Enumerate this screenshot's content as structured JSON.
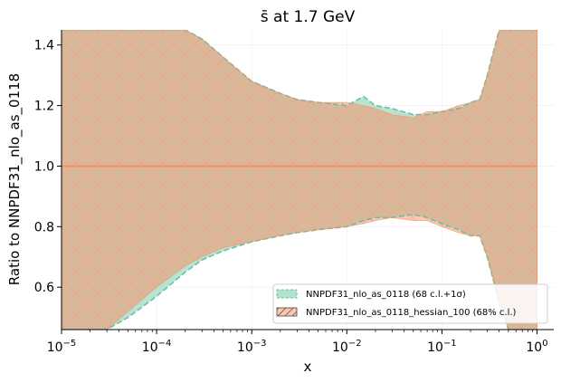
{
  "chart_data": {
    "type": "area",
    "title": "s̄ at 1.7 GeV",
    "xlabel": "x",
    "ylabel": "Ratio to NNPDF31_nlo_as_0118",
    "xscale": "log",
    "xlim": [
      1e-05,
      1.5
    ],
    "ylim": [
      0.46,
      1.45
    ],
    "grid": true,
    "legend_position": "lower-right",
    "x_tick_labels": [
      {
        "value": 1e-05,
        "base": "10",
        "exp": "−5"
      },
      {
        "value": 0.0001,
        "base": "10",
        "exp": "−4"
      },
      {
        "value": 0.001,
        "base": "10",
        "exp": "−3"
      },
      {
        "value": 0.01,
        "base": "10",
        "exp": "−2"
      },
      {
        "value": 0.1,
        "base": "10",
        "exp": "−1"
      },
      {
        "value": 1,
        "base": "10",
        "exp": "0"
      }
    ],
    "y_ticks": [
      0.6,
      0.8,
      1.0,
      1.2,
      1.4
    ],
    "y_tick_labels": [
      "0.6",
      "0.8",
      "1.0",
      "1.2",
      "1.4"
    ],
    "colors": {
      "series1": "#66c2a5",
      "series1_fill": "#b3e2cd",
      "series2": "#fc8d62",
      "series2_fill": "#fdc6b0",
      "overlap": "#d4b99f"
    },
    "series": [
      {
        "name": "NNPDF31_nlo_as_0118 (68 c.l.+1σ)",
        "style": "dashed edge, filled band",
        "x": [
          1e-05,
          2e-05,
          3e-05,
          5e-05,
          0.0001,
          0.0002,
          0.0003,
          0.0005,
          0.001,
          0.002,
          0.003,
          0.005,
          0.01,
          0.015,
          0.02,
          0.03,
          0.05,
          0.07,
          0.1,
          0.15,
          0.2,
          0.25,
          0.3,
          0.4,
          0.5,
          0.7,
          1.0
        ],
        "upper": [
          1.45,
          1.45,
          1.45,
          1.45,
          1.45,
          1.45,
          1.42,
          1.36,
          1.28,
          1.24,
          1.22,
          1.21,
          1.2,
          1.23,
          1.2,
          1.19,
          1.17,
          1.17,
          1.18,
          1.19,
          1.21,
          1.22,
          1.3,
          1.45,
          1.45,
          1.45,
          1.45
        ],
        "lower": [
          0.46,
          0.46,
          0.46,
          0.5,
          0.57,
          0.65,
          0.69,
          0.72,
          0.75,
          0.77,
          0.78,
          0.79,
          0.8,
          0.82,
          0.83,
          0.83,
          0.84,
          0.83,
          0.81,
          0.79,
          0.77,
          0.77,
          0.7,
          0.55,
          0.46,
          0.46,
          0.46
        ]
      },
      {
        "name": "NNPDF31_nlo_as_0118_hessian_100 (68% c.l.)",
        "style": "hatched band, solid central line",
        "x": [
          1e-05,
          2e-05,
          3e-05,
          5e-05,
          0.0001,
          0.0002,
          0.0003,
          0.0005,
          0.001,
          0.002,
          0.003,
          0.005,
          0.01,
          0.015,
          0.02,
          0.03,
          0.05,
          0.07,
          0.1,
          0.15,
          0.2,
          0.25,
          0.3,
          0.4,
          0.5,
          0.7,
          1.0
        ],
        "central": [
          1,
          1,
          1,
          1,
          1,
          1,
          1,
          1,
          1,
          1,
          1,
          1,
          1,
          1,
          1,
          1,
          1,
          1,
          1,
          1,
          1,
          1,
          1,
          1,
          1,
          1,
          1
        ],
        "upper": [
          1.45,
          1.45,
          1.45,
          1.45,
          1.45,
          1.45,
          1.42,
          1.36,
          1.28,
          1.24,
          1.22,
          1.21,
          1.21,
          1.2,
          1.19,
          1.17,
          1.16,
          1.18,
          1.18,
          1.2,
          1.21,
          1.22,
          1.3,
          1.45,
          1.45,
          1.45,
          1.45
        ],
        "lower": [
          0.46,
          0.46,
          0.46,
          0.52,
          0.6,
          0.67,
          0.7,
          0.73,
          0.75,
          0.77,
          0.78,
          0.79,
          0.8,
          0.81,
          0.82,
          0.83,
          0.82,
          0.82,
          0.8,
          0.78,
          0.77,
          0.77,
          0.7,
          0.55,
          0.46,
          0.46,
          0.46
        ]
      }
    ]
  }
}
